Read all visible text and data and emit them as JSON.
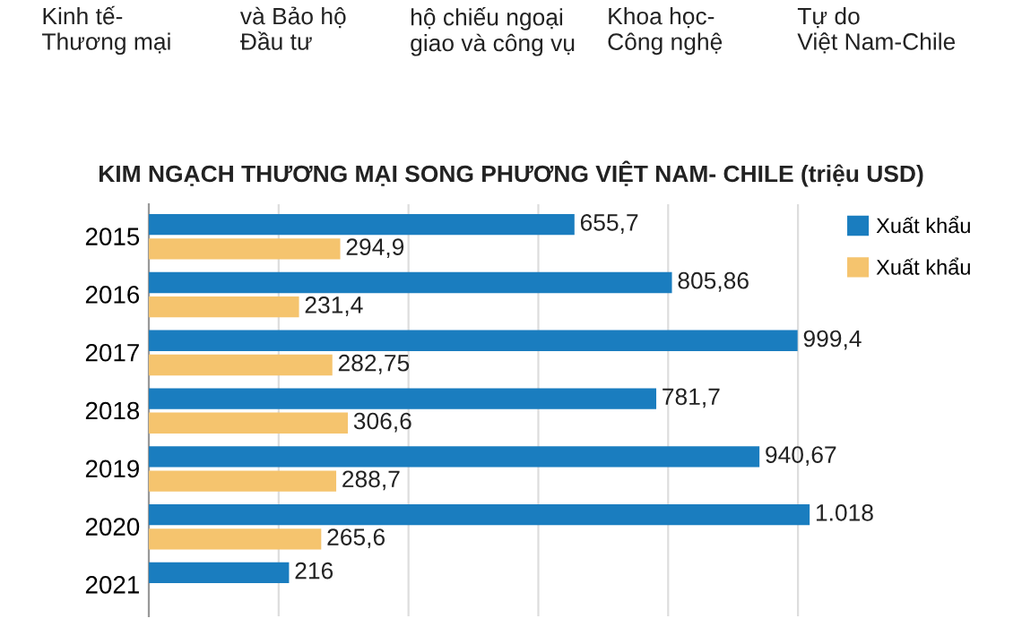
{
  "chart_data": {
    "type": "bar",
    "orientation": "horizontal",
    "title": "KIM NGẠCH THƯƠNG MẠI SONG PHƯƠNG VIỆT NAM- CHILE (triệu USD)",
    "annotations": [
      "Kinh tế-\nThương mại",
      "và Bảo hộ\nĐầu tư",
      "hộ chiếu ngoại\ngiao và công vụ",
      "Khoa học-\nCông nghệ",
      "Tự do\nViệt Nam-Chile"
    ],
    "categories": [
      "2015",
      "2016",
      "2017",
      "2018",
      "2019",
      "2020",
      "2021"
    ],
    "series": [
      {
        "name": "Xuất khẩu",
        "color": "#1a7dbf",
        "values": [
          655.7,
          805.86,
          999.4,
          781.7,
          940.67,
          1018,
          216
        ],
        "value_labels": [
          "655,7",
          "805,86",
          "999,4",
          "781,7",
          "940,67",
          "1.018",
          "216"
        ]
      },
      {
        "name": "Xuất khẩu",
        "color": "#f5c46e",
        "values": [
          294.9,
          231.4,
          282.75,
          306.6,
          288.7,
          265.6,
          null
        ],
        "value_labels": [
          "294,9",
          "231,4",
          "282,75",
          "306,6",
          "288,7",
          "265,6",
          null
        ]
      }
    ],
    "xticks": [
      {
        "value": 0,
        "label": null
      },
      {
        "value": 200,
        "label": null
      },
      {
        "value": 400,
        "label": null
      },
      {
        "value": 600,
        "label": null
      },
      {
        "value": 800,
        "label": null
      },
      {
        "value": 1000,
        "label": null
      }
    ],
    "grid": "x",
    "legend": "top right"
  }
}
